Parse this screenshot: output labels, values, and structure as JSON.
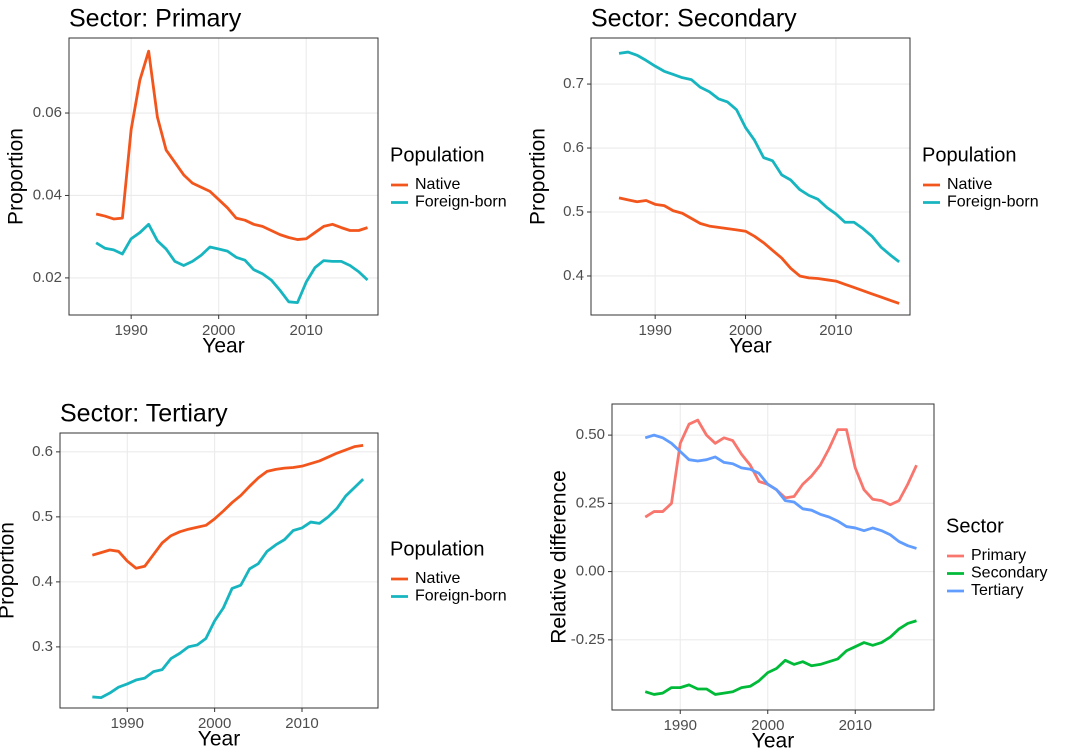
{
  "chart_data": [
    {
      "type": "line",
      "title": "Sector: Primary",
      "xlabel": "Year",
      "ylabel": "Proportion",
      "legend_title": "Population",
      "legend": "right",
      "grid": true,
      "x": [
        1986,
        1987,
        1988,
        1989,
        1990,
        1991,
        1992,
        1993,
        1994,
        1995,
        1996,
        1997,
        1998,
        1999,
        2000,
        2001,
        2002,
        2003,
        2004,
        2005,
        2006,
        2007,
        2008,
        2009,
        2010,
        2011,
        2012,
        2013,
        2014,
        2015,
        2016,
        2017
      ],
      "xlim": [
        1982.9,
        2018.2
      ],
      "xticks": [
        1990,
        2000,
        2010
      ],
      "ylim": [
        0.011,
        0.0782
      ],
      "yticks": [
        0.02,
        0.04,
        0.06
      ],
      "series": [
        {
          "name": "Native",
          "color": "#f2561d",
          "values": [
            0.0355,
            0.035,
            0.0343,
            0.0345,
            0.056,
            0.068,
            0.075,
            0.059,
            0.051,
            0.048,
            0.045,
            0.043,
            0.042,
            0.041,
            0.039,
            0.037,
            0.0345,
            0.034,
            0.033,
            0.0325,
            0.0315,
            0.0305,
            0.0298,
            0.0293,
            0.0295,
            0.031,
            0.0325,
            0.033,
            0.0322,
            0.0315,
            0.0315,
            0.0322
          ]
        },
        {
          "name": "Foreign-born",
          "color": "#17b5c0",
          "values": [
            0.0285,
            0.0272,
            0.0268,
            0.0258,
            0.0295,
            0.031,
            0.033,
            0.029,
            0.027,
            0.024,
            0.023,
            0.024,
            0.0255,
            0.0275,
            0.027,
            0.0265,
            0.025,
            0.0243,
            0.022,
            0.021,
            0.0195,
            0.017,
            0.0142,
            0.014,
            0.019,
            0.0225,
            0.0242,
            0.024,
            0.024,
            0.023,
            0.0215,
            0.0195
          ]
        }
      ]
    },
    {
      "type": "line",
      "title": "Sector: Secondary",
      "xlabel": "Year",
      "ylabel": "Proportion",
      "legend_title": "Population",
      "legend": "right",
      "grid": true,
      "x": [
        1986,
        1987,
        1988,
        1989,
        1990,
        1991,
        1992,
        1993,
        1994,
        1995,
        1996,
        1997,
        1998,
        1999,
        2000,
        2001,
        2002,
        2003,
        2004,
        2005,
        2006,
        2007,
        2008,
        2009,
        2010,
        2011,
        2012,
        2013,
        2014,
        2015,
        2016,
        2017
      ],
      "xlim": [
        1982.9,
        2018.2
      ],
      "xticks": [
        1990,
        2000,
        2010
      ],
      "ylim": [
        0.339,
        0.772
      ],
      "yticks": [
        0.4,
        0.5,
        0.6,
        0.7
      ],
      "series": [
        {
          "name": "Native",
          "color": "#f2561d",
          "values": [
            0.522,
            0.519,
            0.516,
            0.518,
            0.512,
            0.51,
            0.502,
            0.498,
            0.49,
            0.482,
            0.478,
            0.476,
            0.474,
            0.472,
            0.47,
            0.462,
            0.452,
            0.44,
            0.428,
            0.412,
            0.4,
            0.397,
            0.396,
            0.394,
            0.392,
            0.387,
            0.382,
            0.377,
            0.372,
            0.367,
            0.362,
            0.357
          ]
        },
        {
          "name": "Foreign-born",
          "color": "#17b5c0",
          "values": [
            0.748,
            0.75,
            0.745,
            0.737,
            0.728,
            0.72,
            0.715,
            0.71,
            0.707,
            0.695,
            0.688,
            0.677,
            0.672,
            0.66,
            0.632,
            0.612,
            0.585,
            0.58,
            0.558,
            0.55,
            0.535,
            0.526,
            0.52,
            0.507,
            0.497,
            0.484,
            0.484,
            0.474,
            0.462,
            0.445,
            0.433,
            0.422
          ]
        }
      ]
    },
    {
      "type": "line",
      "title": "Sector: Tertiary",
      "xlabel": "Year",
      "ylabel": "Proportion",
      "legend_title": "Population",
      "legend": "right",
      "grid": true,
      "x": [
        1986,
        1987,
        1988,
        1989,
        1990,
        1991,
        1992,
        1993,
        1994,
        1995,
        1996,
        1997,
        1998,
        1999,
        2000,
        2001,
        2002,
        2003,
        2004,
        2005,
        2006,
        2007,
        2008,
        2009,
        2010,
        2011,
        2012,
        2013,
        2014,
        2015,
        2016,
        2017
      ],
      "xlim": [
        1982.3,
        2018.7
      ],
      "xticks": [
        1990,
        2000,
        2010
      ],
      "ylim": [
        0.206,
        0.629
      ],
      "yticks": [
        0.3,
        0.4,
        0.5,
        0.6
      ],
      "series": [
        {
          "name": "Native",
          "color": "#f2561d",
          "values": [
            0.441,
            0.445,
            0.449,
            0.447,
            0.432,
            0.421,
            0.424,
            0.442,
            0.46,
            0.471,
            0.477,
            0.481,
            0.484,
            0.487,
            0.497,
            0.509,
            0.522,
            0.533,
            0.547,
            0.56,
            0.57,
            0.573,
            0.575,
            0.576,
            0.578,
            0.582,
            0.586,
            0.592,
            0.598,
            0.603,
            0.608,
            0.61
          ]
        },
        {
          "name": "Foreign-born",
          "color": "#17b5c0",
          "values": [
            0.223,
            0.222,
            0.229,
            0.238,
            0.243,
            0.249,
            0.252,
            0.262,
            0.265,
            0.282,
            0.29,
            0.3,
            0.303,
            0.313,
            0.34,
            0.36,
            0.39,
            0.395,
            0.42,
            0.428,
            0.447,
            0.457,
            0.465,
            0.479,
            0.483,
            0.492,
            0.49,
            0.5,
            0.513,
            0.532,
            0.545,
            0.558
          ]
        }
      ]
    },
    {
      "type": "line",
      "xlabel": "Year",
      "ylabel": "Relative difference",
      "legend_title": "Sector",
      "legend": "right",
      "grid": true,
      "x": [
        1986,
        1987,
        1988,
        1989,
        1990,
        1991,
        1992,
        1993,
        1994,
        1995,
        1996,
        1997,
        1998,
        1999,
        2000,
        2001,
        2002,
        2003,
        2004,
        2005,
        2006,
        2007,
        2008,
        2009,
        2010,
        2011,
        2012,
        2013,
        2014,
        2015,
        2016,
        2017
      ],
      "xlim": [
        1982.2,
        2019.0
      ],
      "xticks": [
        1990,
        2000,
        2010
      ],
      "ylim": [
        -0.507,
        0.614
      ],
      "yticks": [
        -0.25,
        {
          "value": 0,
          "label": "0.00"
        },
        0.25,
        {
          "value": 0.5,
          "label": "0.50"
        }
      ],
      "series": [
        {
          "name": "Primary",
          "color": "#f8766d",
          "values": [
            0.2,
            0.22,
            0.22,
            0.25,
            0.47,
            0.54,
            0.555,
            0.5,
            0.47,
            0.49,
            0.48,
            0.43,
            0.39,
            0.33,
            0.32,
            0.3,
            0.27,
            0.275,
            0.32,
            0.35,
            0.39,
            0.45,
            0.52,
            0.52,
            0.38,
            0.3,
            0.265,
            0.26,
            0.245,
            0.26,
            0.32,
            0.39
          ]
        },
        {
          "name": "Secondary",
          "color": "#00ba38",
          "values": [
            -0.44,
            -0.45,
            -0.445,
            -0.425,
            -0.425,
            -0.415,
            -0.43,
            -0.43,
            -0.45,
            -0.445,
            -0.44,
            -0.425,
            -0.42,
            -0.4,
            -0.37,
            -0.355,
            -0.325,
            -0.34,
            -0.33,
            -0.345,
            -0.34,
            -0.33,
            -0.32,
            -0.29,
            -0.275,
            -0.26,
            -0.27,
            -0.26,
            -0.24,
            -0.21,
            -0.19,
            -0.18
          ]
        },
        {
          "name": "Tertiary",
          "color": "#619cff",
          "values": [
            0.49,
            0.5,
            0.49,
            0.47,
            0.44,
            0.41,
            0.405,
            0.41,
            0.42,
            0.4,
            0.395,
            0.38,
            0.375,
            0.36,
            0.32,
            0.3,
            0.26,
            0.255,
            0.23,
            0.225,
            0.21,
            0.2,
            0.185,
            0.165,
            0.16,
            0.15,
            0.16,
            0.15,
            0.135,
            0.11,
            0.095,
            0.085
          ]
        }
      ]
    }
  ]
}
